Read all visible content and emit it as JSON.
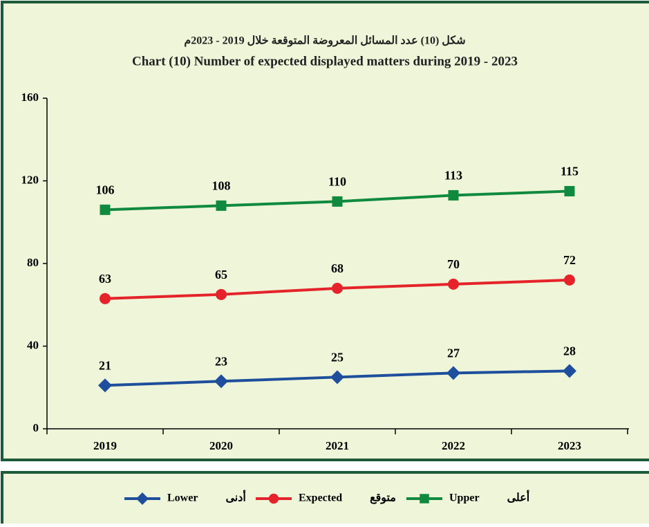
{
  "chart_data": {
    "type": "line",
    "title_ar": "شكل (10) عدد المسائل المعروضة المتوقعة خلال 2019 - 2023م",
    "title": "Chart (10) Number of expected displayed matters during 2019 - 2023",
    "categories": [
      "2019",
      "2020",
      "2021",
      "2022",
      "2023"
    ],
    "series": [
      {
        "name": "Lower",
        "name_ar": "أدنى",
        "color": "#1f4e9c",
        "marker": "diamond",
        "values": [
          21,
          23,
          25,
          27,
          28
        ]
      },
      {
        "name": "Expected",
        "name_ar": "متوقع",
        "color": "#e5232a",
        "marker": "circle",
        "values": [
          63,
          65,
          68,
          70,
          72
        ]
      },
      {
        "name": "Upper",
        "name_ar": "أعلى",
        "color": "#108a3e",
        "marker": "square",
        "values": [
          106,
          108,
          110,
          113,
          115
        ]
      }
    ],
    "ylim": [
      0,
      160
    ],
    "yticks": [
      0,
      40,
      80,
      120,
      160
    ],
    "legend": "bottom"
  }
}
